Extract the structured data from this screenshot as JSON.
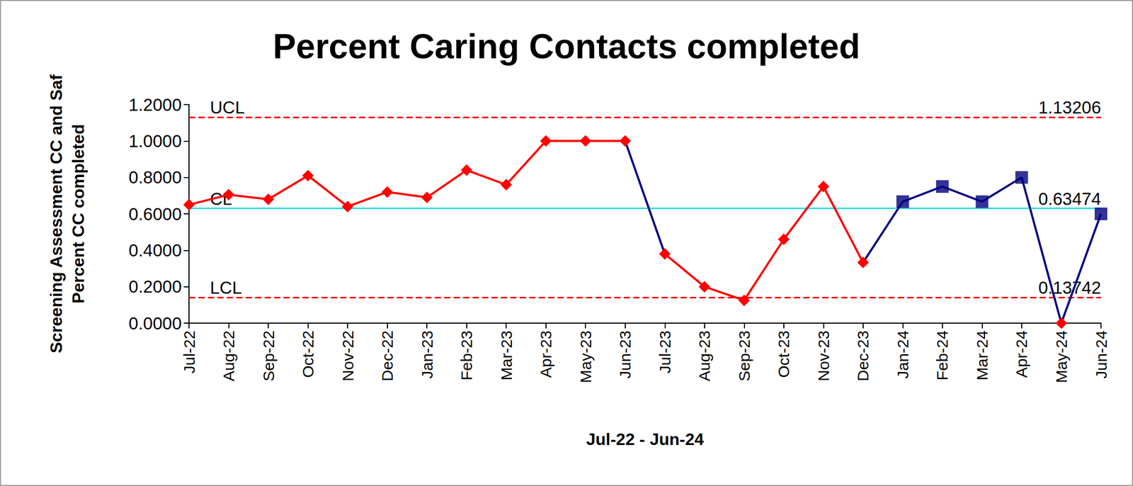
{
  "chart_data": {
    "type": "line",
    "title": "Percent Caring Contacts completed",
    "x_label": "Jul-22 - Jun-24",
    "y_label": "Screening Assessment CC and Saf\nPercent CC completed",
    "categories": [
      "Jul-22",
      "Aug-22",
      "Sep-22",
      "Oct-22",
      "Nov-22",
      "Dec-22",
      "Jan-23",
      "Feb-23",
      "Mar-23",
      "Apr-23",
      "May-23",
      "Jun-23",
      "Jul-23",
      "Aug-23",
      "Sep-23",
      "Oct-23",
      "Nov-23",
      "Dec-23",
      "Jan-24",
      "Feb-24",
      "Mar-24",
      "Apr-24",
      "May-24",
      "Jun-24"
    ],
    "series": [
      {
        "type": "line",
        "color": "#000080",
        "marker": "none",
        "values": [
          null,
          null,
          null,
          null,
          null,
          null,
          null,
          null,
          null,
          null,
          null,
          1.0,
          0.38,
          null,
          null,
          null,
          null,
          0.333,
          0.667,
          0.75,
          0.667,
          0.8,
          0.0,
          0.6
        ]
      },
      {
        "type": "line",
        "color": "#ff0000",
        "marker": "diamond",
        "values": [
          0.65,
          0.705,
          0.68,
          0.81,
          0.64,
          0.72,
          0.69,
          0.84,
          0.76,
          1.0,
          1.0,
          1.0,
          null,
          null,
          null,
          null,
          null,
          null,
          null,
          null,
          null,
          null,
          null,
          null
        ]
      },
      {
        "type": "line",
        "color": "#ff0000",
        "marker": "diamond",
        "values": [
          null,
          null,
          null,
          null,
          null,
          null,
          null,
          null,
          null,
          null,
          null,
          null,
          0.38,
          0.2,
          0.125,
          0.46,
          0.75,
          0.333,
          null,
          null,
          null,
          null,
          0.0,
          null
        ]
      },
      {
        "type": "scatter",
        "color": "#000080",
        "marker": "square",
        "values": [
          null,
          null,
          null,
          null,
          null,
          null,
          null,
          null,
          null,
          null,
          null,
          null,
          null,
          null,
          null,
          null,
          null,
          null,
          0.667,
          0.75,
          0.667,
          0.8,
          null,
          0.6
        ]
      }
    ],
    "reference_lines": [
      {
        "name": "UCL",
        "value": 1.13206,
        "color": "#ff0000",
        "line_style": "dashed"
      },
      {
        "name": "CL",
        "value": 0.63474,
        "color": "#33ddee",
        "line_style": "solid"
      },
      {
        "name": "LCL",
        "value": 0.13742,
        "color": "#ff0000",
        "line_style": "dashed"
      }
    ],
    "ylim": [
      0,
      1.2
    ],
    "yticks": [
      {
        "value": 0,
        "label": "0.0000"
      },
      {
        "value": 0.2,
        "label": "0.2000"
      },
      {
        "value": 0.4,
        "label": "0.4000"
      },
      {
        "value": 0.6,
        "label": "0.6000"
      },
      {
        "value": 0.8,
        "label": "0.8000"
      },
      {
        "value": 1.0,
        "label": "1.0000"
      },
      {
        "value": 1.2,
        "label": "1.2000"
      }
    ],
    "grid": false
  }
}
